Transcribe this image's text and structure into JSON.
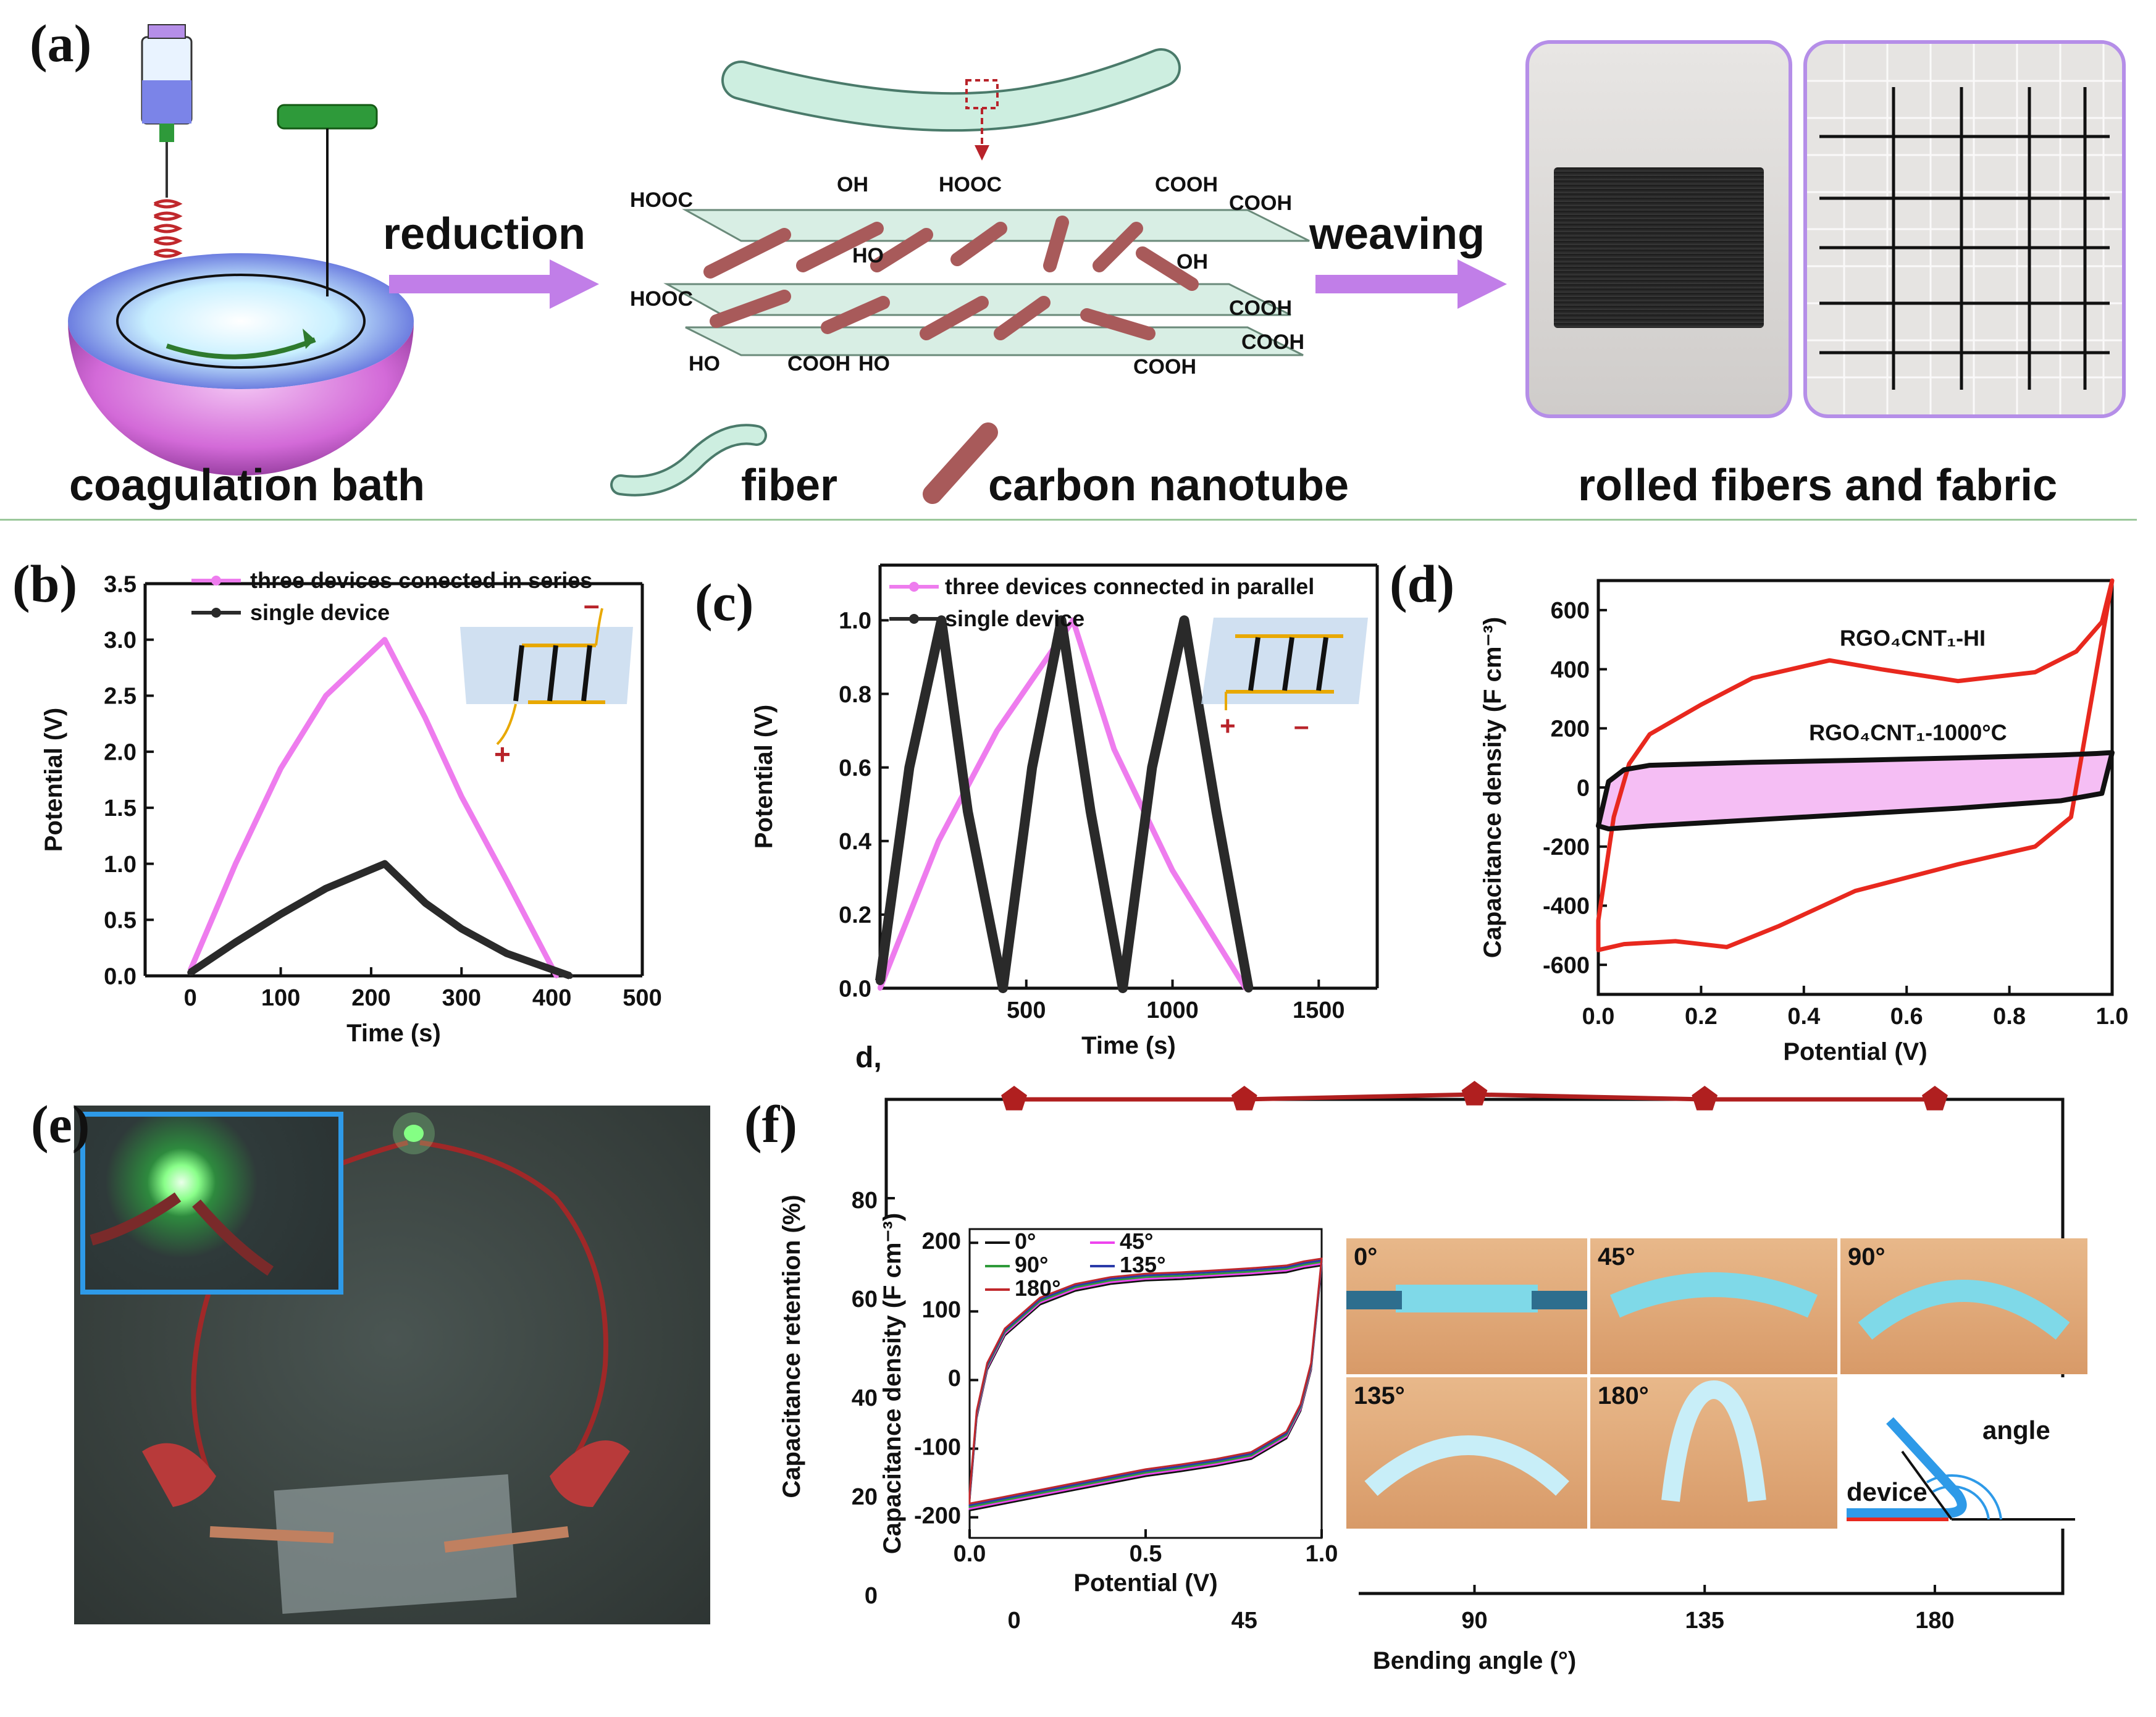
{
  "panel_a": {
    "label": "(a)",
    "coagulation_bath": "coagulation bath",
    "reduction": "reduction",
    "weaving": "weaving",
    "fiber_legend": "fiber",
    "cnt_legend": "carbon nanotube",
    "rolled": "rolled fibers and fabric",
    "groups": {
      "g1": "HOOC",
      "g2": "OH",
      "g3": "HOOC",
      "g4": "COOH",
      "g5": "COOH",
      "g6": "HOOC",
      "g7": "HO",
      "g8": "OH",
      "g9": "COOH",
      "g10": "COOH",
      "g11": "HO",
      "g12": "COOH",
      "g13": "HO",
      "g14": "COOH"
    }
  },
  "panel_b": {
    "label": "(b)",
    "polarity_plus": "+",
    "polarity_minus": "–"
  },
  "panel_c": {
    "label": "(c)",
    "extra_label": "d,",
    "polarity_plus": "+",
    "polarity_minus": "–"
  },
  "panel_d": {
    "label": "(d)"
  },
  "panel_e": {
    "label": "(e)"
  },
  "panel_f": {
    "label": "(f)",
    "photo_angles": [
      "0°",
      "45°",
      "90°",
      "135°",
      "180°"
    ],
    "diagram_device": "device",
    "diagram_angle": "angle"
  },
  "colors": {
    "pink": "#ee7cee",
    "red": "#e8281e",
    "dark": "#2a2a2a",
    "maroon": "#b01f1f",
    "purple_arrow": "#c17ee8"
  },
  "chart_data": [
    {
      "id": "b",
      "type": "line",
      "xlabel": "Time (s)",
      "ylabel": "Potential (V)",
      "xlim": [
        -50,
        500
      ],
      "ylim": [
        0,
        3.5
      ],
      "xticks": [
        0,
        100,
        200,
        300,
        400,
        500
      ],
      "yticks": [
        0.0,
        0.5,
        1.0,
        1.5,
        2.0,
        2.5,
        3.0,
        3.5
      ],
      "series": [
        {
          "name": "three devices conected  in series",
          "color": "#ee7cee",
          "x": [
            0,
            50,
            100,
            150,
            215,
            260,
            300,
            350,
            405
          ],
          "y": [
            0.05,
            1.0,
            1.85,
            2.5,
            3.0,
            2.3,
            1.6,
            0.85,
            0.0
          ]
        },
        {
          "name": "single device",
          "color": "#2a2a2a",
          "x": [
            0,
            50,
            100,
            150,
            215,
            260,
            300,
            350,
            420
          ],
          "y": [
            0.03,
            0.3,
            0.55,
            0.78,
            1.0,
            0.65,
            0.42,
            0.2,
            0.0
          ]
        }
      ]
    },
    {
      "id": "c",
      "type": "line",
      "xlabel": "Time (s)",
      "ylabel": "Potential (V)",
      "xlim": [
        0,
        1700
      ],
      "ylim": [
        0,
        1.15
      ],
      "xticks": [
        500,
        1000,
        1500
      ],
      "yticks": [
        0.0,
        0.2,
        0.4,
        0.6,
        0.8,
        1.0
      ],
      "series": [
        {
          "name": "three devices  connected  in parallel",
          "color": "#ee7cee",
          "x": [
            0,
            200,
            400,
            660,
            800,
            1000,
            1250
          ],
          "y": [
            0.0,
            0.4,
            0.7,
            1.0,
            0.65,
            0.32,
            0.0
          ]
        },
        {
          "name": "single device",
          "color": "#2a2a2a",
          "x": [
            0,
            100,
            210,
            300,
            420,
            520,
            620,
            720,
            830,
            930,
            1040,
            1150,
            1260
          ],
          "y": [
            0.02,
            0.6,
            1.0,
            0.48,
            0.0,
            0.6,
            1.0,
            0.48,
            0.0,
            0.6,
            1.0,
            0.48,
            0.0
          ]
        }
      ]
    },
    {
      "id": "d",
      "type": "line",
      "xlabel": "Potential (V)",
      "ylabel": "Capacitance density (F cm⁻³)",
      "xlim": [
        0.0,
        1.0
      ],
      "ylim": [
        -700,
        700
      ],
      "xticks": [
        0.0,
        0.2,
        0.4,
        0.6,
        0.8,
        1.0
      ],
      "yticks": [
        -600,
        -400,
        -200,
        0,
        200,
        400,
        600
      ],
      "annotations": [
        "RGO₄CNT₁-HI",
        "RGO₄CNT₁-1000°C"
      ],
      "series": [
        {
          "name": "RGO₄CNT₁-HI",
          "color": "#e8281e",
          "x": [
            0.0,
            0.03,
            0.06,
            0.1,
            0.2,
            0.3,
            0.45,
            0.55,
            0.7,
            0.85,
            0.93,
            0.98,
            1.0,
            0.96,
            0.92,
            0.85,
            0.7,
            0.5,
            0.35,
            0.25,
            0.15,
            0.05,
            0.0
          ],
          "y": [
            -450,
            -100,
            80,
            180,
            280,
            370,
            430,
            400,
            360,
            390,
            460,
            560,
            700,
            300,
            -100,
            -200,
            -260,
            -350,
            -470,
            -540,
            -520,
            -530,
            -550
          ]
        },
        {
          "name": "RGO₄CNT₁-1000°C",
          "color": "#111111",
          "x": [
            0.0,
            0.02,
            0.05,
            0.1,
            0.3,
            0.5,
            0.7,
            0.9,
            0.97,
            1.0,
            0.98,
            0.9,
            0.7,
            0.5,
            0.3,
            0.1,
            0.02,
            0.0
          ],
          "y": [
            -130,
            20,
            60,
            75,
            85,
            92,
            100,
            110,
            115,
            118,
            -20,
            -45,
            -70,
            -90,
            -110,
            -130,
            -140,
            -130
          ]
        }
      ]
    },
    {
      "id": "f",
      "type": "line",
      "xlabel": "Bending angle (°)",
      "ylabel": "Capacitance retention (%)",
      "xlim": [
        -25,
        205
      ],
      "ylim": [
        0,
        100
      ],
      "xticks": [
        0,
        45,
        90,
        135,
        180
      ],
      "yticks": [
        0,
        20,
        40,
        60,
        80
      ],
      "series": [
        {
          "name": "retention",
          "color": "#b01f1f",
          "x": [
            0,
            45,
            90,
            135,
            180
          ],
          "y": [
            100,
            100,
            101,
            100,
            100
          ]
        }
      ]
    },
    {
      "id": "f_inset",
      "type": "line",
      "xlabel": "Potential (V)",
      "ylabel": "Capacitance density (F cm⁻³)",
      "xlim": [
        0.0,
        1.0
      ],
      "ylim": [
        -230,
        220
      ],
      "xticks": [
        0.0,
        0.5,
        1.0
      ],
      "yticks": [
        -200,
        -100,
        0,
        100,
        200
      ],
      "series": [
        {
          "name": "0°",
          "color": "#111111"
        },
        {
          "name": "45°",
          "color": "#ee44ee"
        },
        {
          "name": "90°",
          "color": "#2e9a3a"
        },
        {
          "name": "135°",
          "color": "#2a3aa8"
        },
        {
          "name": "180°",
          "color": "#c0282c"
        }
      ],
      "curve": {
        "x": [
          0.0,
          0.02,
          0.05,
          0.1,
          0.2,
          0.3,
          0.4,
          0.5,
          0.6,
          0.7,
          0.8,
          0.9,
          0.95,
          1.0,
          0.97,
          0.94,
          0.9,
          0.8,
          0.7,
          0.6,
          0.5,
          0.4,
          0.3,
          0.2,
          0.1,
          0.05,
          0.0
        ],
        "y": [
          -170,
          -50,
          20,
          70,
          115,
          135,
          145,
          150,
          152,
          155,
          158,
          162,
          168,
          172,
          20,
          -40,
          -80,
          -110,
          -120,
          -128,
          -135,
          -145,
          -155,
          -165,
          -175,
          -180,
          -185
        ]
      }
    }
  ]
}
